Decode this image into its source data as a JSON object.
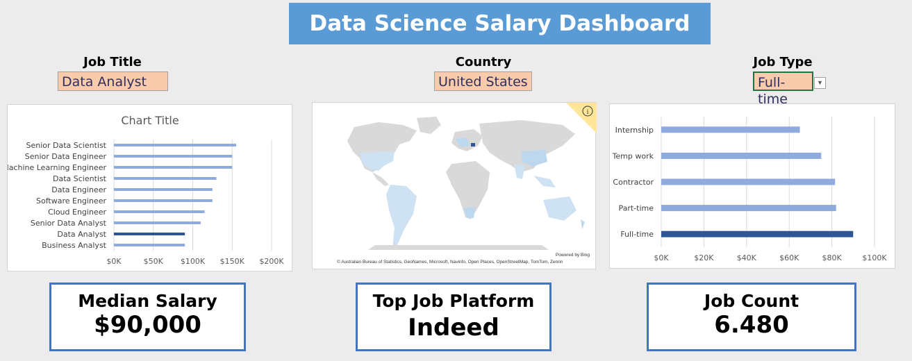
{
  "dashboard": {
    "title": "Data Science Salary Dashboard"
  },
  "filters": {
    "job_title": {
      "label": "Job Title",
      "value": "Data Analyst"
    },
    "country": {
      "label": "Country",
      "value": "United States"
    },
    "job_type": {
      "label": "Job Type",
      "value": "Full-time"
    }
  },
  "kpis": {
    "median_salary": {
      "label": "Median Salary",
      "value": "$90,000"
    },
    "top_platform": {
      "label": "Top Job Platform",
      "value": "Indeed"
    },
    "job_count": {
      "label": "Job Count",
      "value": "6.480"
    }
  },
  "map": {
    "powered_by": "Powered by Bing",
    "attribution": "© Australian Bureau of Statistics, GeoNames, Microsoft, Navinfo, Open Places, OpenStreetMap, TomTom, Zenrin",
    "info_icon": "info-icon",
    "colors": {
      "land": "#d9d9d9",
      "low": "#cfe2f3",
      "mid": "#bdd7ee",
      "high": "#2f5597",
      "badge": "#ffe699"
    }
  },
  "chart_data": [
    {
      "type": "bar",
      "orientation": "horizontal",
      "title": "Chart Title",
      "categories": [
        "Senior Data Scientist",
        "Senior Data Engineer",
        "Machine Learning Engineer",
        "Data Scientist",
        "Data Engineer",
        "Software Engineer",
        "Cloud Engineer",
        "Senior Data Analyst",
        "Data Analyst",
        "Business Analyst"
      ],
      "values": [
        155000,
        150000,
        150000,
        130000,
        125000,
        125000,
        115000,
        110000,
        90000,
        90000
      ],
      "highlight": "Data Analyst",
      "xlim": [
        0,
        200000
      ],
      "xticks": [
        "$0K",
        "$50K",
        "$100K",
        "$150K",
        "$200K"
      ],
      "grid": true,
      "colors": {
        "bar": "#8faadc",
        "highlight": "#2f5597",
        "grid": "#d9d9d9"
      }
    },
    {
      "type": "bar",
      "orientation": "horizontal",
      "title": "",
      "categories": [
        "Internship",
        "Temp work",
        "Contractor",
        "Part-time",
        "Full-time"
      ],
      "values": [
        65000,
        75000,
        81500,
        82000,
        90000
      ],
      "highlight": "Full-time",
      "xlim": [
        0,
        100000
      ],
      "xticks": [
        "$0K",
        "$20K",
        "$40K",
        "$60K",
        "$80K",
        "$100K"
      ],
      "grid": true,
      "colors": {
        "bar": "#8faadc",
        "highlight": "#2f5597",
        "grid": "#d9d9d9"
      }
    }
  ]
}
